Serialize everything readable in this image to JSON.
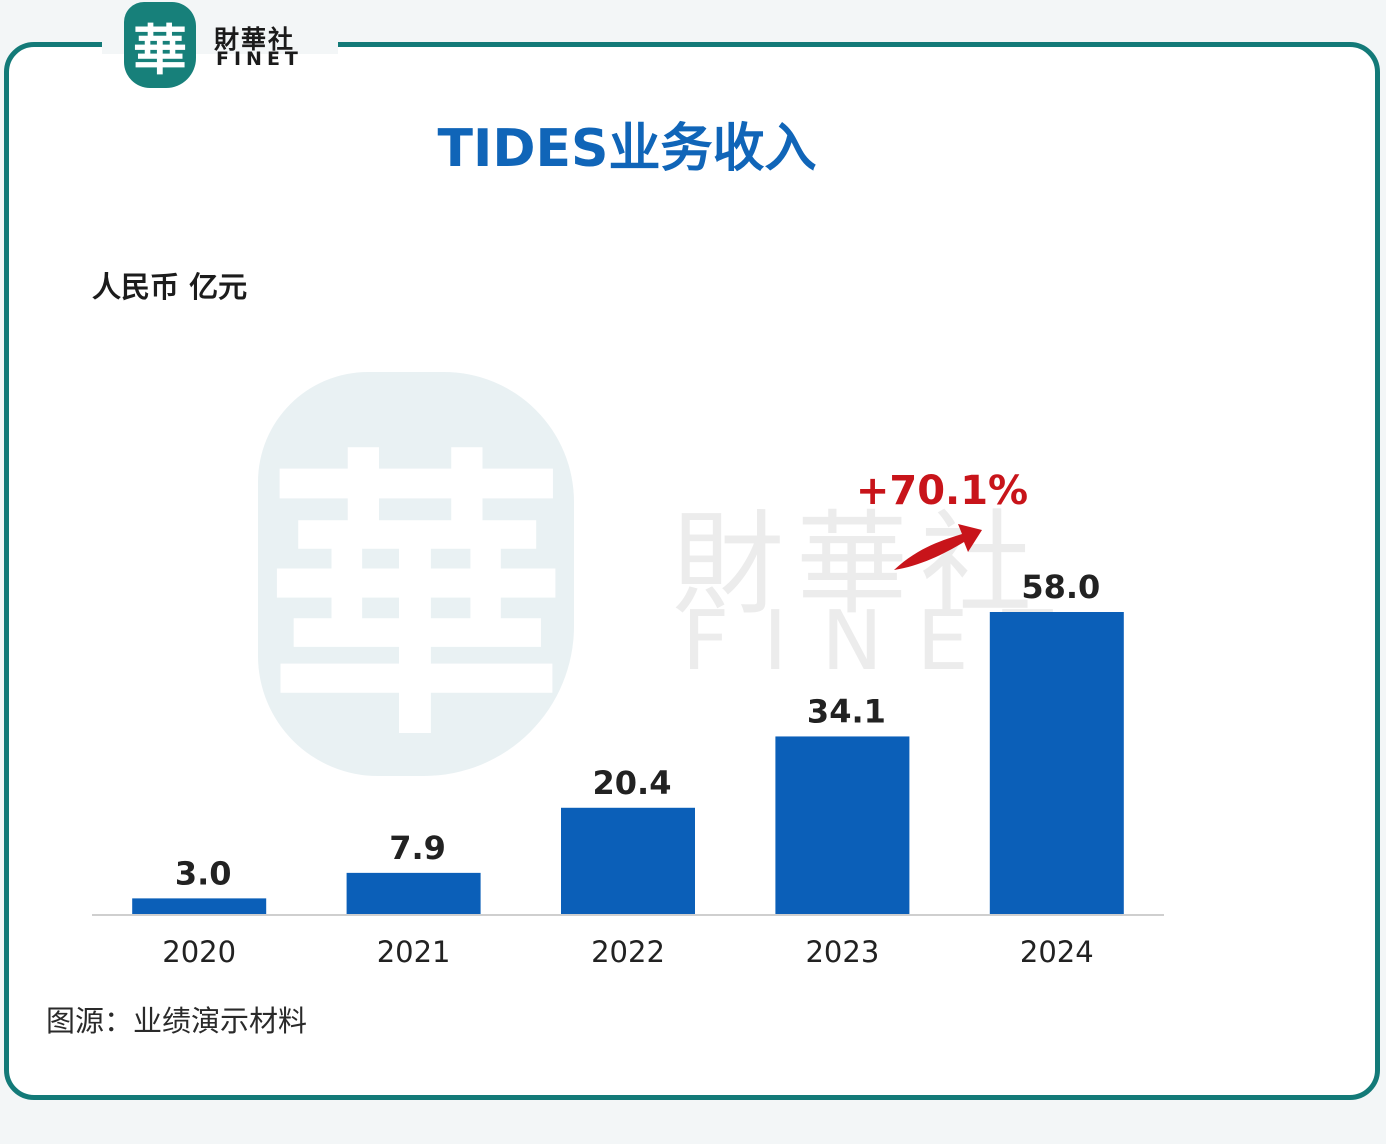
{
  "logo": {
    "seal_char": "華",
    "cn": "財華社",
    "en": "FINET"
  },
  "watermark": {
    "seal_char": "華",
    "cn": "財華社",
    "en": "FINET"
  },
  "colors": {
    "bar": "#0b5fb8",
    "accent": "#c8141a",
    "title": "#1065b8",
    "frame": "#137a78"
  },
  "chart_data": {
    "type": "bar",
    "title": "TIDES业务收入",
    "ylabel": "人民币 亿元",
    "categories": [
      "2020",
      "2021",
      "2022",
      "2023",
      "2024"
    ],
    "values": [
      3.0,
      7.9,
      20.4,
      34.1,
      58.0
    ],
    "value_labels": [
      "3.0",
      "7.9",
      "20.4",
      "34.1",
      "58.0"
    ],
    "ylim": [
      0,
      58
    ],
    "grid": false,
    "annotation": "+70.1%"
  },
  "source": "图源：业绩演示材料"
}
